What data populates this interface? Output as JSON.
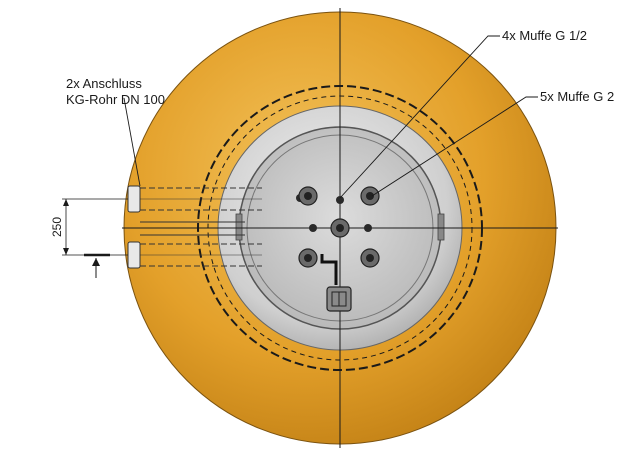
{
  "labels": {
    "connection_line1": "2x Anschluss",
    "connection_line2": "KG-Rohr DN 100",
    "sockets_half_inch": "4x Muffe G 1/2",
    "sockets_two_inch": "5x Muffe G 2"
  },
  "dimension": {
    "value": "250"
  },
  "colors": {
    "tank_orange": "#e3a02a",
    "tank_orange_dark": "#b8770f",
    "lid_grey": "#d8d8d8",
    "lid_grey_dark": "#9a9a9a",
    "line": "#1a1a1a"
  }
}
